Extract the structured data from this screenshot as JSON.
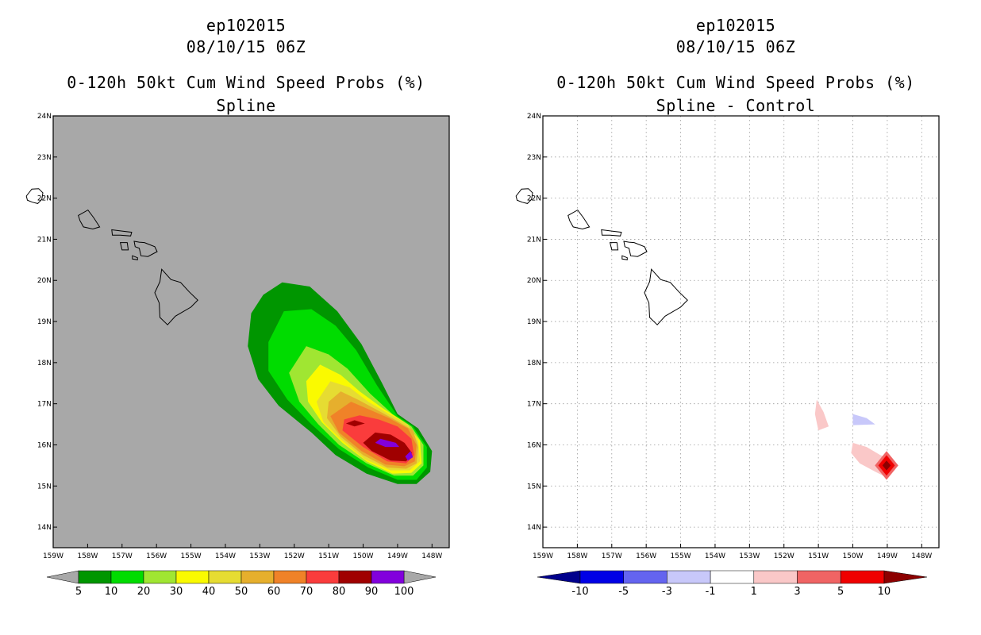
{
  "panels": [
    {
      "title_line1": "ep102015",
      "title_line2": "08/10/15 06Z",
      "title_line3": "0-120h 50kt Cum Wind Speed Probs (%)",
      "subtitle": "Spline"
    },
    {
      "title_line1": "ep102015",
      "title_line2": "08/10/15 06Z",
      "title_line3": "0-120h 50kt Cum Wind Speed Probs (%)",
      "subtitle": "Spline - Control"
    }
  ],
  "chart_data": [
    {
      "type": "heatmap",
      "title": "0-120h 50kt Cum Wind Speed Probs (%)",
      "subtitle": "Spline",
      "storm_id": "ep102015",
      "datetime": "08/10/15 06Z",
      "xlim": [
        -159,
        -147.5
      ],
      "ylim": [
        13.5,
        24
      ],
      "x_ticks": [
        "159W",
        "158W",
        "157W",
        "156W",
        "155W",
        "154W",
        "153W",
        "152W",
        "151W",
        "150W",
        "149W",
        "148W"
      ],
      "y_ticks": [
        "14N",
        "15N",
        "16N",
        "17N",
        "18N",
        "19N",
        "20N",
        "21N",
        "22N",
        "23N",
        "24N"
      ],
      "grid": false,
      "background": "#a8a8a8",
      "colorbar": {
        "labels": [
          "5",
          "10",
          "20",
          "30",
          "40",
          "50",
          "60",
          "70",
          "80",
          "90",
          "100"
        ],
        "colors": [
          "#009600",
          "#00dc00",
          "#a0e632",
          "#fafa00",
          "#e6dc32",
          "#e6af2d",
          "#f08228",
          "#fa3c3c",
          "#a00000",
          "#8200dc"
        ],
        "under_color": "#a8a8a8",
        "over_color": "#a8a8a8"
      },
      "contours": [
        {
          "level": 5,
          "color": "#009600",
          "points": [
            [
              -152.35,
              19.95
            ],
            [
              -151.55,
              19.85
            ],
            [
              -150.75,
              19.25
            ],
            [
              -150.05,
              18.45
            ],
            [
              -149.45,
              17.5
            ],
            [
              -149.0,
              16.75
            ],
            [
              -148.4,
              16.4
            ],
            [
              -148.0,
              15.85
            ],
            [
              -148.05,
              15.35
            ],
            [
              -148.45,
              15.05
            ],
            [
              -149.0,
              15.05
            ],
            [
              -149.9,
              15.3
            ],
            [
              -150.8,
              15.75
            ],
            [
              -151.5,
              16.3
            ],
            [
              -152.45,
              16.95
            ],
            [
              -153.05,
              17.6
            ],
            [
              -153.35,
              18.4
            ],
            [
              -153.25,
              19.2
            ],
            [
              -152.9,
              19.65
            ]
          ]
        },
        {
          "level": 10,
          "color": "#00dc00",
          "points": [
            [
              -152.3,
              19.25
            ],
            [
              -151.5,
              19.3
            ],
            [
              -150.8,
              18.9
            ],
            [
              -150.2,
              18.3
            ],
            [
              -149.6,
              17.45
            ],
            [
              -149.0,
              16.7
            ],
            [
              -148.55,
              16.45
            ],
            [
              -148.15,
              15.95
            ],
            [
              -148.15,
              15.45
            ],
            [
              -148.45,
              15.15
            ],
            [
              -149.0,
              15.15
            ],
            [
              -149.85,
              15.45
            ],
            [
              -150.7,
              15.9
            ],
            [
              -151.5,
              16.5
            ],
            [
              -152.2,
              17.1
            ],
            [
              -152.75,
              17.8
            ],
            [
              -152.75,
              18.5
            ]
          ]
        },
        {
          "level": 20,
          "color": "#a0e632",
          "points": [
            [
              -151.65,
              18.4
            ],
            [
              -151.0,
              18.2
            ],
            [
              -150.45,
              17.85
            ],
            [
              -149.8,
              17.25
            ],
            [
              -149.15,
              16.75
            ],
            [
              -148.6,
              16.45
            ],
            [
              -148.25,
              16.0
            ],
            [
              -148.25,
              15.5
            ],
            [
              -148.55,
              15.25
            ],
            [
              -149.1,
              15.25
            ],
            [
              -149.9,
              15.55
            ],
            [
              -150.7,
              16.0
            ],
            [
              -151.3,
              16.5
            ],
            [
              -151.85,
              17.05
            ],
            [
              -152.15,
              17.75
            ]
          ]
        },
        {
          "level": 30,
          "color": "#fafa00",
          "points": [
            [
              -151.25,
              17.95
            ],
            [
              -150.65,
              17.7
            ],
            [
              -150.1,
              17.3
            ],
            [
              -149.45,
              16.9
            ],
            [
              -148.8,
              16.55
            ],
            [
              -148.35,
              16.1
            ],
            [
              -148.3,
              15.55
            ],
            [
              -148.6,
              15.32
            ],
            [
              -149.15,
              15.3
            ],
            [
              -149.9,
              15.6
            ],
            [
              -150.6,
              16.05
            ],
            [
              -151.2,
              16.55
            ],
            [
              -151.6,
              17.05
            ],
            [
              -151.65,
              17.55
            ]
          ]
        },
        {
          "level": 40,
          "color": "#e6dc32",
          "points": [
            [
              -150.95,
              17.55
            ],
            [
              -150.4,
              17.4
            ],
            [
              -149.85,
              17.05
            ],
            [
              -149.25,
              16.75
            ],
            [
              -148.7,
              16.5
            ],
            [
              -148.4,
              16.1
            ],
            [
              -148.35,
              15.6
            ],
            [
              -148.65,
              15.38
            ],
            [
              -149.2,
              15.38
            ],
            [
              -149.95,
              15.65
            ],
            [
              -150.6,
              16.1
            ],
            [
              -151.15,
              16.55
            ],
            [
              -151.35,
              17.05
            ]
          ]
        },
        {
          "level": 50,
          "color": "#e6af2d",
          "points": [
            [
              -150.65,
              17.3
            ],
            [
              -150.15,
              17.1
            ],
            [
              -149.6,
              16.85
            ],
            [
              -149.05,
              16.6
            ],
            [
              -148.55,
              16.35
            ],
            [
              -148.4,
              15.95
            ],
            [
              -148.45,
              15.55
            ],
            [
              -148.75,
              15.42
            ],
            [
              -149.3,
              15.45
            ],
            [
              -150.0,
              15.75
            ],
            [
              -150.65,
              16.2
            ],
            [
              -151.05,
              16.65
            ],
            [
              -151.0,
              17.05
            ]
          ]
        },
        {
          "level": 60,
          "color": "#f08228",
          "points": [
            [
              -150.35,
              17.05
            ],
            [
              -149.8,
              16.85
            ],
            [
              -149.25,
              16.65
            ],
            [
              -148.7,
              16.4
            ],
            [
              -148.45,
              16.0
            ],
            [
              -148.5,
              15.6
            ],
            [
              -148.8,
              15.48
            ],
            [
              -149.35,
              15.52
            ],
            [
              -150.05,
              15.85
            ],
            [
              -150.7,
              16.3
            ],
            [
              -150.95,
              16.7
            ]
          ]
        },
        {
          "level": 70,
          "color": "#fa3c3c",
          "points": [
            [
              -150.1,
              16.72
            ],
            [
              -149.55,
              16.62
            ],
            [
              -149.0,
              16.45
            ],
            [
              -148.6,
              16.15
            ],
            [
              -148.52,
              15.75
            ],
            [
              -148.75,
              15.55
            ],
            [
              -149.3,
              15.6
            ],
            [
              -150.0,
              15.95
            ],
            [
              -150.6,
              16.35
            ],
            [
              -150.55,
              16.62
            ]
          ]
        },
        {
          "level": 80,
          "color": "#a00000",
          "points": [
            [
              -149.65,
              16.3
            ],
            [
              -149.2,
              16.25
            ],
            [
              -148.8,
              16.05
            ],
            [
              -148.58,
              15.8
            ],
            [
              -148.75,
              15.6
            ],
            [
              -149.2,
              15.62
            ],
            [
              -149.75,
              15.85
            ],
            [
              -150.0,
              16.05
            ]
          ]
        },
        {
          "level": 80,
          "color": "#a00000",
          "points": [
            [
              -150.25,
              16.6
            ],
            [
              -149.95,
              16.52
            ],
            [
              -150.25,
              16.45
            ],
            [
              -150.5,
              16.52
            ]
          ]
        },
        {
          "level": 90,
          "color": "#8200dc",
          "points": [
            [
              -149.5,
              16.15
            ],
            [
              -149.05,
              16.05
            ],
            [
              -148.95,
              15.95
            ],
            [
              -149.35,
              15.95
            ],
            [
              -149.65,
              16.05
            ]
          ]
        },
        {
          "level": 90,
          "color": "#8200dc",
          "points": [
            [
              -148.62,
              15.85
            ],
            [
              -148.55,
              15.7
            ],
            [
              -148.7,
              15.62
            ],
            [
              -148.78,
              15.72
            ]
          ]
        }
      ]
    },
    {
      "type": "heatmap",
      "title": "0-120h 50kt Cum Wind Speed Probs (%)",
      "subtitle": "Spline - Control",
      "storm_id": "ep102015",
      "datetime": "08/10/15 06Z",
      "xlim": [
        -159,
        -147.5
      ],
      "ylim": [
        13.5,
        24
      ],
      "x_ticks": [
        "159W",
        "158W",
        "157W",
        "156W",
        "155W",
        "154W",
        "153W",
        "152W",
        "151W",
        "150W",
        "149W",
        "148W"
      ],
      "y_ticks": [
        "14N",
        "15N",
        "16N",
        "17N",
        "18N",
        "19N",
        "20N",
        "21N",
        "22N",
        "23N",
        "24N"
      ],
      "grid": true,
      "background": "#ffffff",
      "colorbar": {
        "labels": [
          "-10",
          "-5",
          "-3",
          "-1",
          "1",
          "3",
          "5",
          "10"
        ],
        "colors": [
          "#0000e6",
          "#6464f0",
          "#c8c8fa",
          "#ffffff",
          "#fac8c8",
          "#f06464",
          "#f00000"
        ],
        "under_color": "#00008c",
        "over_color": "#8c0000"
      },
      "contours": [
        {
          "level": 1,
          "color": "#fac8c8",
          "points": [
            [
              -151.05,
              17.1
            ],
            [
              -150.85,
              16.8
            ],
            [
              -150.7,
              16.45
            ],
            [
              -151.0,
              16.35
            ],
            [
              -151.1,
              16.75
            ]
          ]
        },
        {
          "level": -1,
          "color": "#c8c8fa",
          "points": [
            [
              -150.0,
              16.75
            ],
            [
              -149.6,
              16.65
            ],
            [
              -149.35,
              16.5
            ],
            [
              -150.0,
              16.48
            ]
          ]
        },
        {
          "level": 1,
          "color": "#fac8c8",
          "points": [
            [
              -150.0,
              16.05
            ],
            [
              -149.6,
              15.95
            ],
            [
              -149.2,
              15.75
            ],
            [
              -148.85,
              15.65
            ],
            [
              -148.75,
              15.45
            ],
            [
              -149.0,
              15.2
            ],
            [
              -149.35,
              15.35
            ],
            [
              -149.8,
              15.55
            ],
            [
              -150.05,
              15.8
            ]
          ]
        },
        {
          "level": 3,
          "color": "#f06464",
          "points": [
            [
              -149.02,
              15.85
            ],
            [
              -148.68,
              15.5
            ],
            [
              -149.02,
              15.15
            ],
            [
              -149.36,
              15.5
            ]
          ]
        },
        {
          "level": 5,
          "color": "#f00000",
          "points": [
            [
              -149.02,
              15.75
            ],
            [
              -148.78,
              15.5
            ],
            [
              -149.02,
              15.25
            ],
            [
              -149.26,
              15.5
            ]
          ]
        },
        {
          "level": 10,
          "color": "#8c0000",
          "points": [
            [
              -149.02,
              15.62
            ],
            [
              -148.9,
              15.5
            ],
            [
              -149.02,
              15.38
            ],
            [
              -149.14,
              15.5
            ]
          ]
        }
      ]
    }
  ]
}
